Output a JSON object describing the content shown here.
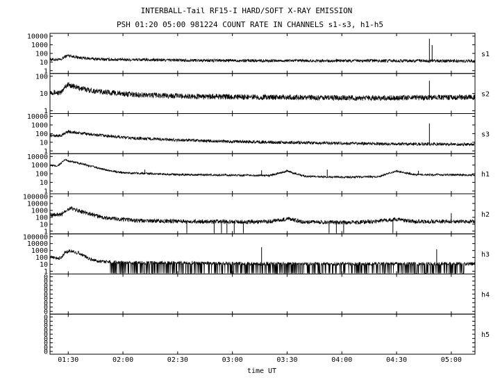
{
  "chart_data": {
    "type": "line",
    "title": "INTERBALL-Tail RF15-I HARD/SOFT X-RAY EMISSION",
    "subtitle": "PSH 01:20 05:00 981224  COUNT RATE IN CHANNELS s1-s3, h1-h5",
    "xlabel": "time UT",
    "x_range_minutes": [
      80,
      313
    ],
    "x_ticks": [
      {
        "minutes": 90,
        "label": "01:30"
      },
      {
        "minutes": 120,
        "label": "02:00"
      },
      {
        "minutes": 150,
        "label": "02:30"
      },
      {
        "minutes": 180,
        "label": "03:00"
      },
      {
        "minutes": 210,
        "label": "03:30"
      },
      {
        "minutes": 240,
        "label": "04:00"
      },
      {
        "minutes": 270,
        "label": "04:30"
      },
      {
        "minutes": 300,
        "label": "05:00"
      }
    ],
    "y_scale": "log",
    "panels": [
      {
        "name": "s1",
        "ylim_exp": [
          0,
          4
        ],
        "y_ticks": [
          "1",
          "10",
          "100",
          "1000",
          "10000"
        ],
        "points": [
          [
            80,
            20
          ],
          [
            86,
            18
          ],
          [
            88,
            40
          ],
          [
            90,
            60
          ],
          [
            95,
            35
          ],
          [
            100,
            26
          ],
          [
            110,
            20
          ],
          [
            130,
            18
          ],
          [
            170,
            15
          ],
          [
            220,
            14
          ],
          [
            270,
            14
          ],
          [
            313,
            13
          ]
        ],
        "noise": 0.18,
        "spikes": [
          [
            288,
            5000
          ],
          [
            289.5,
            900
          ]
        ],
        "dropouts": []
      },
      {
        "name": "s2",
        "ylim_exp": [
          0,
          2.3
        ],
        "y_ticks": [
          "1",
          "10",
          "100"
        ],
        "points": [
          [
            80,
            18
          ],
          [
            86,
            15
          ],
          [
            88,
            40
          ],
          [
            90,
            55
          ],
          [
            95,
            35
          ],
          [
            105,
            20
          ],
          [
            125,
            12
          ],
          [
            160,
            9
          ],
          [
            200,
            8
          ],
          [
            250,
            7
          ],
          [
            313,
            8
          ]
        ],
        "noise": 0.18,
        "spikes": [
          [
            288,
            100
          ]
        ],
        "dropouts": []
      },
      {
        "name": "s3",
        "ylim_exp": [
          0,
          4
        ],
        "y_ticks": [
          "1",
          "10",
          "100",
          "1000",
          "10000"
        ],
        "points": [
          [
            80,
            60
          ],
          [
            86,
            55
          ],
          [
            88,
            110
          ],
          [
            90,
            170
          ],
          [
            95,
            120
          ],
          [
            105,
            70
          ],
          [
            125,
            30
          ],
          [
            150,
            18
          ],
          [
            180,
            12
          ],
          [
            220,
            9
          ],
          [
            250,
            7
          ],
          [
            280,
            6
          ],
          [
            313,
            6
          ]
        ],
        "noise": 0.18,
        "spikes": [
          [
            288,
            1500
          ]
        ],
        "dropouts": []
      },
      {
        "name": "h1",
        "ylim_exp": [
          0,
          4
        ],
        "y_ticks": [
          "1",
          "10",
          "100",
          "1000",
          "10000"
        ],
        "points": [
          [
            80,
            900
          ],
          [
            84,
            800
          ],
          [
            86,
            1500
          ],
          [
            88,
            4000
          ],
          [
            92,
            2500
          ],
          [
            100,
            1000
          ],
          [
            110,
            300
          ],
          [
            120,
            130
          ],
          [
            150,
            80
          ],
          [
            200,
            60
          ],
          [
            210,
            200
          ],
          [
            220,
            50
          ],
          [
            240,
            40
          ],
          [
            260,
            45
          ],
          [
            270,
            200
          ],
          [
            280,
            80
          ],
          [
            313,
            70
          ]
        ],
        "noise": 0.12,
        "spikes": [
          [
            132,
            300
          ],
          [
            196,
            250
          ],
          [
            232,
            300
          ],
          [
            282,
            220
          ]
        ],
        "dropouts": []
      },
      {
        "name": "h2",
        "ylim_exp": [
          0,
          5
        ],
        "y_ticks": [
          "1",
          "10",
          "100",
          "1000",
          "10000",
          "100000"
        ],
        "points": [
          [
            80,
            250
          ],
          [
            86,
            200
          ],
          [
            88,
            800
          ],
          [
            91,
            2000
          ],
          [
            98,
            600
          ],
          [
            110,
            80
          ],
          [
            130,
            30
          ],
          [
            160,
            25
          ],
          [
            200,
            22
          ],
          [
            210,
            60
          ],
          [
            220,
            20
          ],
          [
            250,
            18
          ],
          [
            270,
            50
          ],
          [
            280,
            25
          ],
          [
            313,
            25
          ]
        ],
        "noise": 0.3,
        "spikes": [
          [
            300,
            400
          ]
        ],
        "dropouts": [
          [
            155,
            2
          ],
          [
            170,
            2
          ],
          [
            174,
            2
          ],
          [
            177,
            2
          ],
          [
            181,
            2
          ],
          [
            186,
            2
          ],
          [
            233,
            2
          ],
          [
            237,
            2
          ],
          [
            241,
            2
          ],
          [
            268,
            2
          ]
        ]
      },
      {
        "name": "h3",
        "ylim_exp": [
          0,
          5
        ],
        "y_ticks": [
          "1",
          "10",
          "100",
          "1000",
          "10000",
          "100000"
        ],
        "points": [
          [
            80,
            100
          ],
          [
            86,
            80
          ],
          [
            88,
            500
          ],
          [
            91,
            900
          ],
          [
            96,
            400
          ],
          [
            102,
            60
          ],
          [
            106,
            30
          ],
          [
            120,
            18
          ],
          [
            160,
            15
          ],
          [
            200,
            12
          ],
          [
            250,
            12
          ],
          [
            313,
            12
          ]
        ],
        "noise": 0.25,
        "spikes": [
          [
            196,
            3000
          ],
          [
            292,
            1500
          ]
        ],
        "dropouts": [],
        "dropout_region": [
          113,
          308
        ]
      },
      {
        "name": "h4",
        "ylim_exp": [
          0,
          1
        ],
        "y_ticks": [
          "0",
          "0",
          "0",
          "0",
          "0",
          "0",
          "0",
          "0",
          "0"
        ],
        "points": [],
        "noise": 0,
        "spikes": [],
        "dropouts": []
      },
      {
        "name": "h5",
        "ylim_exp": [
          0,
          1
        ],
        "y_ticks": [
          "0",
          "0",
          "0",
          "0",
          "0",
          "0",
          "0",
          "0",
          "0"
        ],
        "points": [],
        "noise": 0,
        "spikes": [],
        "dropouts": []
      }
    ]
  }
}
